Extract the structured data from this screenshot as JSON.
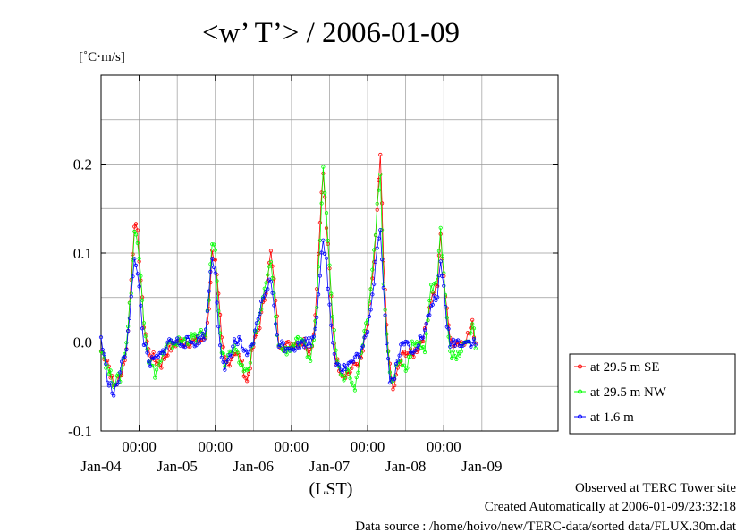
{
  "chart_data": {
    "type": "line",
    "title": "<w’ T’> / 2006-01-09",
    "ylabel": "[˚C·m/s]",
    "xlabel": "(LST)",
    "ylim": [
      -0.1,
      0.3
    ],
    "y_ticks": [
      -0.1,
      0.0,
      0.1,
      0.2
    ],
    "y_tick_labels": [
      "-0.1",
      "0.0",
      "0.1",
      "0.2"
    ],
    "x_range_hours": [
      0,
      144
    ],
    "x_axis_start": "2006-01-03 12:00",
    "x_time_ticks": [
      "00:00",
      "00:00",
      "00:00",
      "00:00",
      "00:00"
    ],
    "x_day_labels": [
      "Jan-04",
      "Jan-05",
      "Jan-06",
      "Jan-07",
      "Jan-08",
      "Jan-09"
    ],
    "grid": true,
    "legend_position": "right",
    "series": [
      {
        "name": "at 29.5 m SE",
        "color": "#ff0000",
        "key_points": [
          [
            0,
            -0.01
          ],
          [
            2,
            -0.02
          ],
          [
            4,
            -0.05
          ],
          [
            6,
            -0.04
          ],
          [
            8,
            -0.01
          ],
          [
            9.5,
            0.07
          ],
          [
            10.5,
            0.135
          ],
          [
            11.5,
            0.12
          ],
          [
            12.5,
            0.07
          ],
          [
            13.5,
            0.02
          ],
          [
            15,
            -0.01
          ],
          [
            17,
            -0.02
          ],
          [
            19,
            -0.025
          ],
          [
            21,
            -0.01
          ],
          [
            24,
            0.0
          ],
          [
            30,
            0.0
          ],
          [
            33,
            0.005
          ],
          [
            34,
            0.04
          ],
          [
            35,
            0.1
          ],
          [
            36,
            0.095
          ],
          [
            37,
            0.05
          ],
          [
            38,
            0.0
          ],
          [
            39,
            -0.02
          ],
          [
            40,
            -0.025
          ],
          [
            42,
            -0.01
          ],
          [
            44,
            -0.02
          ],
          [
            46,
            -0.045
          ],
          [
            48,
            -0.005
          ],
          [
            50,
            0.02
          ],
          [
            52,
            0.06
          ],
          [
            53.5,
            0.1
          ],
          [
            55,
            0.05
          ],
          [
            56,
            0.0
          ],
          [
            58,
            -0.005
          ],
          [
            62,
            0.0
          ],
          [
            64,
            0.0
          ],
          [
            66,
            -0.01
          ],
          [
            67,
            0.01
          ],
          [
            68,
            0.06
          ],
          [
            69,
            0.14
          ],
          [
            70,
            0.19
          ],
          [
            71,
            0.13
          ],
          [
            72,
            0.08
          ],
          [
            73,
            0.02
          ],
          [
            74,
            -0.02
          ],
          [
            76,
            -0.035
          ],
          [
            78,
            -0.035
          ],
          [
            80,
            -0.025
          ],
          [
            82,
            -0.02
          ],
          [
            84,
            0.02
          ],
          [
            86,
            0.09
          ],
          [
            87,
            0.145
          ],
          [
            88,
            0.21
          ],
          [
            89,
            0.09
          ],
          [
            90,
            0.02
          ],
          [
            91,
            -0.03
          ],
          [
            92,
            -0.055
          ],
          [
            94,
            -0.025
          ],
          [
            96,
            -0.01
          ],
          [
            98,
            -0.015
          ],
          [
            100,
            -0.005
          ],
          [
            102,
            0.01
          ],
          [
            104,
            0.05
          ],
          [
            106,
            0.065
          ],
          [
            107,
            0.12
          ],
          [
            108,
            0.07
          ],
          [
            109,
            0.04
          ],
          [
            110,
            0.0
          ],
          [
            112,
            0.0
          ],
          [
            114,
            0.0
          ],
          [
            116,
            0.01
          ],
          [
            117,
            0.02
          ],
          [
            118,
            0.0
          ]
        ]
      },
      {
        "name": "at 29.5 m NW",
        "color": "#00ff00",
        "key_points": [
          [
            0,
            -0.005
          ],
          [
            2,
            -0.03
          ],
          [
            4,
            -0.045
          ],
          [
            6,
            -0.04
          ],
          [
            8,
            0.0
          ],
          [
            9.5,
            0.06
          ],
          [
            10.5,
            0.125
          ],
          [
            11.5,
            0.11
          ],
          [
            12.5,
            0.08
          ],
          [
            13.5,
            0.025
          ],
          [
            15,
            -0.02
          ],
          [
            17,
            -0.035
          ],
          [
            19,
            -0.02
          ],
          [
            21,
            -0.005
          ],
          [
            24,
            0.0
          ],
          [
            30,
            0.005
          ],
          [
            33,
            0.01
          ],
          [
            34,
            0.05
          ],
          [
            35,
            0.115
          ],
          [
            36,
            0.1
          ],
          [
            37,
            0.04
          ],
          [
            38,
            -0.01
          ],
          [
            39,
            -0.025
          ],
          [
            40,
            -0.015
          ],
          [
            42,
            -0.01
          ],
          [
            44,
            -0.025
          ],
          [
            46,
            -0.035
          ],
          [
            48,
            0.0
          ],
          [
            50,
            0.03
          ],
          [
            52,
            0.065
          ],
          [
            53.5,
            0.09
          ],
          [
            55,
            0.03
          ],
          [
            56,
            -0.005
          ],
          [
            58,
            -0.01
          ],
          [
            62,
            0.0
          ],
          [
            64,
            -0.005
          ],
          [
            66,
            -0.02
          ],
          [
            67,
            0.005
          ],
          [
            68,
            0.04
          ],
          [
            69,
            0.12
          ],
          [
            70,
            0.195
          ],
          [
            71,
            0.15
          ],
          [
            72,
            0.09
          ],
          [
            73,
            0.03
          ],
          [
            74,
            -0.01
          ],
          [
            76,
            -0.04
          ],
          [
            78,
            -0.03
          ],
          [
            80,
            -0.05
          ],
          [
            82,
            -0.015
          ],
          [
            84,
            0.03
          ],
          [
            86,
            0.1
          ],
          [
            87,
            0.15
          ],
          [
            88,
            0.19
          ],
          [
            89,
            0.07
          ],
          [
            90,
            0.01
          ],
          [
            91,
            -0.04
          ],
          [
            92,
            -0.04
          ],
          [
            94,
            -0.02
          ],
          [
            96,
            -0.03
          ],
          [
            98,
            -0.005
          ],
          [
            100,
            0.0
          ],
          [
            102,
            -0.01
          ],
          [
            104,
            0.06
          ],
          [
            106,
            0.07
          ],
          [
            107,
            0.125
          ],
          [
            108,
            0.08
          ],
          [
            109,
            0.03
          ],
          [
            110,
            -0.01
          ],
          [
            112,
            -0.02
          ],
          [
            114,
            -0.005
          ],
          [
            116,
            0.0
          ],
          [
            117,
            0.025
          ],
          [
            118,
            -0.005
          ]
        ]
      },
      {
        "name": "at 1.6 m",
        "color": "#0000ff",
        "key_points": [
          [
            0,
            0.005
          ],
          [
            2,
            -0.04
          ],
          [
            4,
            -0.06
          ],
          [
            6,
            -0.035
          ],
          [
            8,
            -0.005
          ],
          [
            9.5,
            0.05
          ],
          [
            10.5,
            0.09
          ],
          [
            11.5,
            0.08
          ],
          [
            12.5,
            0.04
          ],
          [
            13.5,
            0.0
          ],
          [
            15,
            -0.025
          ],
          [
            17,
            -0.02
          ],
          [
            19,
            -0.015
          ],
          [
            21,
            0.0
          ],
          [
            24,
            0.0
          ],
          [
            30,
            0.0
          ],
          [
            33,
            0.01
          ],
          [
            34,
            0.06
          ],
          [
            35,
            0.095
          ],
          [
            36,
            0.08
          ],
          [
            37,
            0.02
          ],
          [
            38,
            -0.02
          ],
          [
            39,
            -0.035
          ],
          [
            40,
            -0.02
          ],
          [
            42,
            0.0
          ],
          [
            44,
            0.0
          ],
          [
            46,
            -0.02
          ],
          [
            48,
            0.0
          ],
          [
            50,
            0.035
          ],
          [
            52,
            0.06
          ],
          [
            53.5,
            0.07
          ],
          [
            55,
            0.02
          ],
          [
            56,
            0.0
          ],
          [
            58,
            -0.005
          ],
          [
            62,
            -0.005
          ],
          [
            64,
            0.0
          ],
          [
            66,
            0.0
          ],
          [
            67,
            0.01
          ],
          [
            68,
            0.03
          ],
          [
            69,
            0.08
          ],
          [
            70,
            0.11
          ],
          [
            71,
            0.09
          ],
          [
            72,
            0.04
          ],
          [
            73,
            0.0
          ],
          [
            74,
            -0.02
          ],
          [
            76,
            -0.03
          ],
          [
            78,
            -0.025
          ],
          [
            80,
            -0.02
          ],
          [
            82,
            -0.01
          ],
          [
            84,
            0.01
          ],
          [
            86,
            0.07
          ],
          [
            87,
            0.11
          ],
          [
            88,
            0.13
          ],
          [
            89,
            0.06
          ],
          [
            90,
            0.0
          ],
          [
            91,
            -0.04
          ],
          [
            92,
            -0.045
          ],
          [
            94,
            -0.01
          ],
          [
            96,
            0.0
          ],
          [
            98,
            -0.01
          ],
          [
            100,
            0.0
          ],
          [
            102,
            0.01
          ],
          [
            104,
            0.04
          ],
          [
            106,
            0.055
          ],
          [
            107,
            0.085
          ],
          [
            108,
            0.06
          ],
          [
            109,
            0.02
          ],
          [
            110,
            0.0
          ],
          [
            112,
            0.0
          ],
          [
            114,
            0.0
          ],
          [
            116,
            0.0
          ],
          [
            117,
            0.0
          ],
          [
            118,
            0.0
          ]
        ]
      }
    ]
  },
  "footer": {
    "line1": "Observed at TERC Tower site",
    "line2": "Created Automatically at 2006-01-09/23:32:18",
    "line3": "Data source : /home/hoivo/new/TERC-data/sorted  data/FLUX.30m.dat"
  }
}
